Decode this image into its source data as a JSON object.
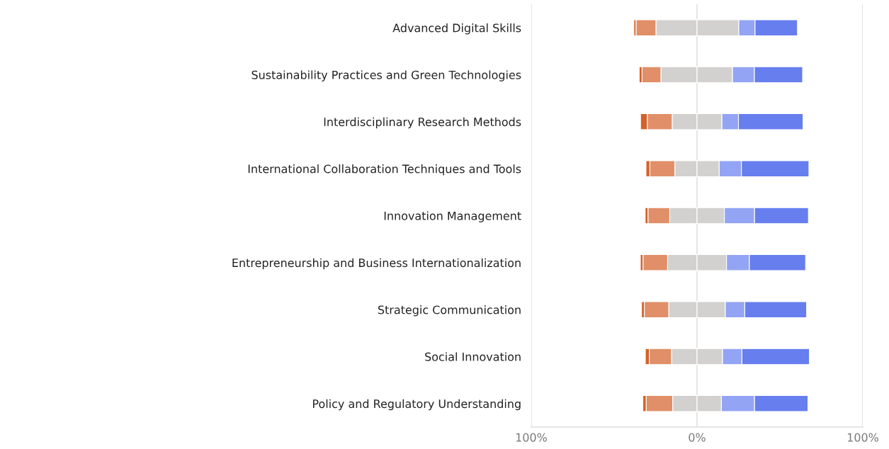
{
  "chart_data": {
    "type": "bar",
    "orientation": "horizontal",
    "stacked": true,
    "categories": [
      "Advanced Digital Skills",
      "Sustainability Practices and Green Technologies",
      "Interdisciplinary Research Methods",
      "International Collaboration Techniques and Tools",
      "Innovation Management",
      "Entrepreneurship and Business Internationalization",
      "Strategic Communication",
      "Social Innovation",
      "Policy and Regulatory Understanding"
    ],
    "series": [
      {
        "color": "#d3d1cf",
        "values": [
          -24.8,
          -21.8,
          -15,
          -13.4,
          -16.5,
          -17.8,
          -17.1,
          -15.4,
          -14.7
        ]
      },
      {
        "color": "#e08f68",
        "values": [
          -12,
          -11.4,
          -15,
          -15.1,
          -13.1,
          -14.8,
          -14.7,
          -13.4,
          -16
        ]
      },
      {
        "color": "#d4622a",
        "values": [
          -1.3,
          -1.7,
          -4.1,
          -2.3,
          -1.7,
          -1.6,
          -1.7,
          -2.4,
          -2
        ]
      },
      {
        "color": "#d3d1cf",
        "values": [
          25.2,
          21.4,
          15,
          13.4,
          16.5,
          17.8,
          17.1,
          15.4,
          14.7
        ]
      },
      {
        "color": "#93a4f4",
        "values": [
          9.8,
          13.2,
          10,
          13.4,
          18.2,
          13.8,
          11.7,
          11.7,
          20
        ]
      },
      {
        "color": "#667eee",
        "values": [
          25.6,
          29.1,
          39,
          40.7,
          32.5,
          33.9,
          37.3,
          40.7,
          32.2
        ]
      }
    ],
    "xlim": [
      -100,
      100
    ],
    "xticks": [
      {
        "value": -100,
        "label": "100%"
      },
      {
        "value": 0,
        "label": "0%"
      },
      {
        "value": 100,
        "label": "100%"
      }
    ],
    "grid": "x"
  }
}
